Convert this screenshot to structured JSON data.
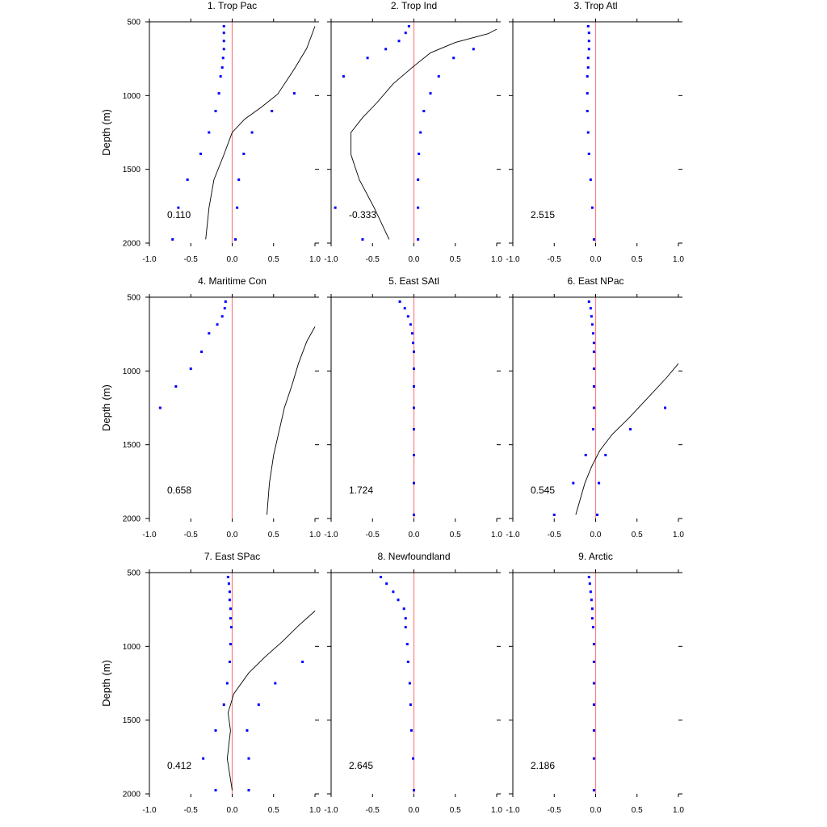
{
  "chart_data": [
    {
      "type": "scatter",
      "title": "1. Trop Pac",
      "ylabel": "Depth (m)",
      "xlim": [
        -1.0,
        1.0
      ],
      "ylim": [
        500,
        2000
      ],
      "y_inverted": true,
      "xticks": [
        "-1.0",
        "-0.5",
        "0.0",
        "0.5",
        "1.0"
      ],
      "yticks": [
        "500",
        "1000",
        "1500",
        "2000"
      ],
      "annotation": "0.110",
      "series": [
        {
          "kind": "points",
          "color": "#0000ff",
          "points": [
            [
              -0.1,
              530
            ],
            [
              -0.1,
              575
            ],
            [
              -0.1,
              630
            ],
            [
              -0.1,
              685
            ],
            [
              -0.11,
              745
            ],
            [
              -0.12,
              810
            ],
            [
              -0.14,
              870
            ],
            [
              -0.16,
              985
            ],
            [
              -0.2,
              1105
            ],
            [
              -0.28,
              1250
            ],
            [
              -0.38,
              1395
            ],
            [
              -0.54,
              1570
            ],
            [
              -0.65,
              1760
            ],
            [
              -0.72,
              1975
            ],
            [
              0.75,
              985
            ],
            [
              0.48,
              1105
            ],
            [
              0.24,
              1250
            ],
            [
              0.14,
              1395
            ],
            [
              0.08,
              1570
            ],
            [
              0.06,
              1760
            ],
            [
              0.04,
              1975
            ]
          ]
        },
        {
          "kind": "line",
          "color": "#000000",
          "points": [
            [
              1.0,
              530
            ],
            [
              0.9,
              680
            ],
            [
              0.75,
              820
            ],
            [
              0.55,
              990
            ],
            [
              0.35,
              1080
            ],
            [
              0.15,
              1160
            ],
            [
              0.0,
              1250
            ],
            [
              -0.1,
              1400
            ],
            [
              -0.22,
              1570
            ],
            [
              -0.28,
              1760
            ],
            [
              -0.32,
              1975
            ]
          ]
        },
        {
          "kind": "vline",
          "color": "#ff8080",
          "x": 0
        }
      ]
    },
    {
      "type": "scatter",
      "title": "2. Trop Ind",
      "xlim": [
        -1.0,
        1.0
      ],
      "ylim": [
        500,
        2000
      ],
      "y_inverted": true,
      "xticks": [
        "-1.0",
        "-0.5",
        "0.0",
        "0.5",
        "1.0"
      ],
      "yticks": [],
      "annotation": "-0.333",
      "series": [
        {
          "kind": "points",
          "color": "#0000ff",
          "points": [
            [
              -0.06,
              530
            ],
            [
              -0.1,
              575
            ],
            [
              -0.18,
              630
            ],
            [
              -0.34,
              685
            ],
            [
              -0.56,
              745
            ],
            [
              -0.85,
              870
            ],
            [
              -0.95,
              1760
            ],
            [
              -0.62,
              1975
            ],
            [
              0.72,
              685
            ],
            [
              0.48,
              745
            ],
            [
              0.3,
              870
            ],
            [
              0.2,
              985
            ],
            [
              0.12,
              1105
            ],
            [
              0.08,
              1250
            ],
            [
              0.06,
              1395
            ],
            [
              0.05,
              1570
            ],
            [
              0.05,
              1760
            ],
            [
              0.05,
              1975
            ]
          ]
        },
        {
          "kind": "line",
          "color": "#000000",
          "points": [
            [
              1.0,
              550
            ],
            [
              0.9,
              580
            ],
            [
              0.5,
              640
            ],
            [
              0.2,
              710
            ],
            [
              0.0,
              800
            ],
            [
              -0.25,
              920
            ],
            [
              -0.45,
              1050
            ],
            [
              -0.62,
              1150
            ],
            [
              -0.76,
              1250
            ],
            [
              -0.76,
              1400
            ],
            [
              -0.66,
              1570
            ],
            [
              -0.48,
              1760
            ],
            [
              -0.3,
              1975
            ]
          ]
        },
        {
          "kind": "vline",
          "color": "#ff8080",
          "x": 0
        }
      ]
    },
    {
      "type": "scatter",
      "title": "3. Trop Atl",
      "xlim": [
        -1.0,
        1.0
      ],
      "ylim": [
        500,
        2000
      ],
      "y_inverted": true,
      "xticks": [
        "-1.0",
        "-0.5",
        "0.0",
        "0.5",
        "1.0"
      ],
      "yticks": [],
      "annotation": "2.515",
      "series": [
        {
          "kind": "points",
          "color": "#0000ff",
          "points": [
            [
              -0.09,
              530
            ],
            [
              -0.08,
              575
            ],
            [
              -0.08,
              630
            ],
            [
              -0.08,
              685
            ],
            [
              -0.09,
              745
            ],
            [
              -0.09,
              810
            ],
            [
              -0.1,
              870
            ],
            [
              -0.1,
              985
            ],
            [
              -0.1,
              1105
            ],
            [
              -0.09,
              1250
            ],
            [
              -0.08,
              1395
            ],
            [
              -0.06,
              1570
            ],
            [
              -0.04,
              1760
            ],
            [
              -0.02,
              1975
            ]
          ]
        },
        {
          "kind": "vline",
          "color": "#ff8080",
          "x": 0
        }
      ]
    },
    {
      "type": "scatter",
      "title": "4. Maritime Con",
      "ylabel": "Depth (m)",
      "xlim": [
        -1.0,
        1.0
      ],
      "ylim": [
        500,
        2000
      ],
      "y_inverted": true,
      "xticks": [
        "-1.0",
        "-0.5",
        "0.0",
        "0.5",
        "1.0"
      ],
      "yticks": [
        "500",
        "1000",
        "1500",
        "2000"
      ],
      "annotation": "0.658",
      "series": [
        {
          "kind": "points",
          "color": "#0000ff",
          "points": [
            [
              -0.08,
              530
            ],
            [
              -0.09,
              575
            ],
            [
              -0.12,
              630
            ],
            [
              -0.18,
              685
            ],
            [
              -0.28,
              745
            ],
            [
              -0.37,
              870
            ],
            [
              -0.5,
              985
            ],
            [
              -0.68,
              1105
            ],
            [
              -0.87,
              1250
            ]
          ]
        },
        {
          "kind": "line",
          "color": "#000000",
          "points": [
            [
              1.0,
              700
            ],
            [
              0.9,
              800
            ],
            [
              0.8,
              950
            ],
            [
              0.72,
              1100
            ],
            [
              0.63,
              1250
            ],
            [
              0.57,
              1400
            ],
            [
              0.5,
              1570
            ],
            [
              0.45,
              1760
            ],
            [
              0.42,
              1975
            ]
          ]
        },
        {
          "kind": "vline",
          "color": "#ff8080",
          "x": 0
        }
      ]
    },
    {
      "type": "scatter",
      "title": "5. East SAtl",
      "xlim": [
        -1.0,
        1.0
      ],
      "ylim": [
        500,
        2000
      ],
      "y_inverted": true,
      "xticks": [
        "-1.0",
        "-0.5",
        "0.0",
        "0.5",
        "1.0"
      ],
      "yticks": [],
      "annotation": "1.724",
      "series": [
        {
          "kind": "points",
          "color": "#0000ff",
          "points": [
            [
              -0.17,
              530
            ],
            [
              -0.11,
              575
            ],
            [
              -0.07,
              630
            ],
            [
              -0.04,
              685
            ],
            [
              -0.02,
              745
            ],
            [
              -0.01,
              810
            ],
            [
              0.0,
              870
            ],
            [
              0.0,
              985
            ],
            [
              0.0,
              1105
            ],
            [
              0.0,
              1250
            ],
            [
              0.0,
              1395
            ],
            [
              0.0,
              1570
            ],
            [
              0.0,
              1760
            ],
            [
              0.0,
              1975
            ]
          ]
        },
        {
          "kind": "vline",
          "color": "#ff8080",
          "x": 0
        }
      ]
    },
    {
      "type": "scatter",
      "title": "6. East NPac",
      "xlim": [
        -1.0,
        1.0
      ],
      "ylim": [
        500,
        2000
      ],
      "y_inverted": true,
      "xticks": [
        "-1.0",
        "-0.5",
        "0.0",
        "0.5",
        "1.0"
      ],
      "yticks": [],
      "annotation": "0.545",
      "series": [
        {
          "kind": "points",
          "color": "#0000ff",
          "points": [
            [
              -0.08,
              530
            ],
            [
              -0.06,
              575
            ],
            [
              -0.05,
              630
            ],
            [
              -0.04,
              685
            ],
            [
              -0.03,
              745
            ],
            [
              -0.02,
              810
            ],
            [
              -0.02,
              870
            ],
            [
              -0.02,
              985
            ],
            [
              -0.02,
              1105
            ],
            [
              -0.02,
              1250
            ],
            [
              -0.03,
              1395
            ],
            [
              -0.12,
              1570
            ],
            [
              -0.27,
              1760
            ],
            [
              -0.5,
              1975
            ],
            [
              0.84,
              1250
            ],
            [
              0.42,
              1395
            ],
            [
              0.12,
              1570
            ],
            [
              0.04,
              1760
            ],
            [
              0.02,
              1975
            ]
          ]
        },
        {
          "kind": "line",
          "color": "#000000",
          "points": [
            [
              1.0,
              950
            ],
            [
              0.85,
              1050
            ],
            [
              0.6,
              1200
            ],
            [
              0.4,
              1320
            ],
            [
              0.2,
              1430
            ],
            [
              0.05,
              1540
            ],
            [
              -0.05,
              1650
            ],
            [
              -0.13,
              1760
            ],
            [
              -0.24,
              1975
            ]
          ]
        },
        {
          "kind": "vline",
          "color": "#ff8080",
          "x": 0
        }
      ]
    },
    {
      "type": "scatter",
      "title": "7. East SPac",
      "ylabel": "Depth (m)",
      "xlim": [
        -1.0,
        1.0
      ],
      "ylim": [
        500,
        2000
      ],
      "y_inverted": true,
      "xticks": [
        "-1.0",
        "-0.5",
        "0.0",
        "0.5",
        "1.0"
      ],
      "yticks": [
        "500",
        "1000",
        "1500",
        "2000"
      ],
      "annotation": "0.412",
      "series": [
        {
          "kind": "points",
          "color": "#0000ff",
          "points": [
            [
              -0.05,
              530
            ],
            [
              -0.04,
              575
            ],
            [
              -0.03,
              630
            ],
            [
              -0.03,
              685
            ],
            [
              -0.02,
              745
            ],
            [
              -0.02,
              810
            ],
            [
              -0.01,
              870
            ],
            [
              -0.02,
              985
            ],
            [
              -0.03,
              1105
            ],
            [
              -0.06,
              1250
            ],
            [
              -0.1,
              1395
            ],
            [
              -0.2,
              1570
            ],
            [
              -0.35,
              1760
            ],
            [
              -0.2,
              1975
            ],
            [
              0.85,
              1105
            ],
            [
              0.52,
              1250
            ],
            [
              0.32,
              1395
            ],
            [
              0.18,
              1570
            ],
            [
              0.2,
              1760
            ],
            [
              0.2,
              1975
            ]
          ]
        },
        {
          "kind": "line",
          "color": "#000000",
          "points": [
            [
              1.0,
              760
            ],
            [
              0.8,
              860
            ],
            [
              0.6,
              970
            ],
            [
              0.4,
              1070
            ],
            [
              0.2,
              1180
            ],
            [
              0.02,
              1320
            ],
            [
              -0.05,
              1450
            ],
            [
              -0.02,
              1570
            ],
            [
              -0.06,
              1760
            ],
            [
              0.0,
              1975
            ]
          ]
        },
        {
          "kind": "vline",
          "color": "#ff8080",
          "x": 0
        }
      ]
    },
    {
      "type": "scatter",
      "title": "8. Newfoundland",
      "xlim": [
        -1.0,
        1.0
      ],
      "ylim": [
        500,
        2000
      ],
      "y_inverted": true,
      "xticks": [
        "-1.0",
        "-0.5",
        "0.0",
        "0.5",
        "1.0"
      ],
      "yticks": [],
      "annotation": "2.645",
      "series": [
        {
          "kind": "points",
          "color": "#0000ff",
          "points": [
            [
              -0.4,
              530
            ],
            [
              -0.33,
              575
            ],
            [
              -0.25,
              630
            ],
            [
              -0.19,
              685
            ],
            [
              -0.12,
              745
            ],
            [
              -0.1,
              810
            ],
            [
              -0.1,
              870
            ],
            [
              -0.08,
              985
            ],
            [
              -0.07,
              1105
            ],
            [
              -0.05,
              1250
            ],
            [
              -0.04,
              1395
            ],
            [
              -0.03,
              1570
            ],
            [
              -0.01,
              1760
            ],
            [
              0.0,
              1975
            ]
          ]
        },
        {
          "kind": "vline",
          "color": "#ff8080",
          "x": 0
        }
      ]
    },
    {
      "type": "scatter",
      "title": "9. Arctic",
      "xlim": [
        -1.0,
        1.0
      ],
      "ylim": [
        500,
        2000
      ],
      "y_inverted": true,
      "xticks": [
        "-1.0",
        "-0.5",
        "0.0",
        "0.5",
        "1.0"
      ],
      "yticks": [],
      "annotation": "2.186",
      "series": [
        {
          "kind": "points",
          "color": "#0000ff",
          "points": [
            [
              -0.08,
              530
            ],
            [
              -0.07,
              575
            ],
            [
              -0.06,
              630
            ],
            [
              -0.05,
              685
            ],
            [
              -0.04,
              745
            ],
            [
              -0.04,
              810
            ],
            [
              -0.03,
              870
            ],
            [
              -0.02,
              985
            ],
            [
              -0.02,
              1105
            ],
            [
              -0.02,
              1250
            ],
            [
              -0.02,
              1395
            ],
            [
              -0.02,
              1570
            ],
            [
              -0.02,
              1760
            ],
            [
              -0.02,
              1975
            ]
          ]
        },
        {
          "kind": "vline",
          "color": "#ff8080",
          "x": 0
        }
      ]
    }
  ]
}
